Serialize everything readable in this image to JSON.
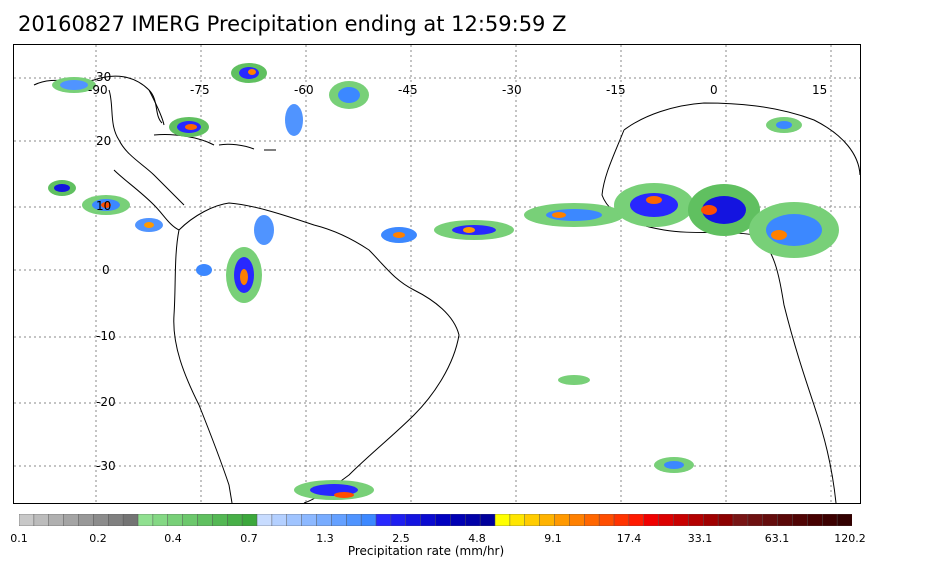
{
  "title": "20160827 IMERG Precipitation ending at 12:59:59 Z",
  "map": {
    "lon_labels": [
      "-90",
      "-75",
      "-60",
      "-45",
      "-30",
      "-15",
      "0",
      "15"
    ],
    "lat_labels": [
      "30",
      "20",
      "10",
      "0",
      "-10",
      "-20",
      "-30"
    ]
  },
  "colorbar": {
    "title": "Precipitation rate (mm/hr)",
    "tick_labels": [
      "0.1",
      "0.2",
      "0.4",
      "0.7",
      "1.3",
      "2.5",
      "4.8",
      "9.1",
      "17.4",
      "33.1",
      "63.1",
      "120.2"
    ],
    "colors": [
      "#c8c8c8",
      "#bcbcbc",
      "#b0b0b0",
      "#a4a4a4",
      "#989898",
      "#8c8c8c",
      "#808080",
      "#747474",
      "#90e090",
      "#84d884",
      "#78d078",
      "#6cc86c",
      "#60c060",
      "#54b854",
      "#48b048",
      "#3ca83c",
      "#c8dcff",
      "#b4d0ff",
      "#a0c4ff",
      "#8cb8ff",
      "#78acff",
      "#64a0ff",
      "#5094ff",
      "#3c88ff",
      "#2828ff",
      "#1e1ef0",
      "#1414e0",
      "#0a0ad0",
      "#0000c0",
      "#0000b4",
      "#0000a8",
      "#00009c",
      "#ffff00",
      "#ffe600",
      "#ffcc00",
      "#ffb300",
      "#ff9900",
      "#ff8000",
      "#ff6600",
      "#ff4d00",
      "#ff3300",
      "#ff1a00",
      "#f00000",
      "#dc0000",
      "#c80000",
      "#b40000",
      "#a00000",
      "#8c0000",
      "#781414",
      "#6e1010",
      "#640c0c",
      "#5a0808",
      "#500404",
      "#460000",
      "#3c0000",
      "#320000"
    ]
  }
}
